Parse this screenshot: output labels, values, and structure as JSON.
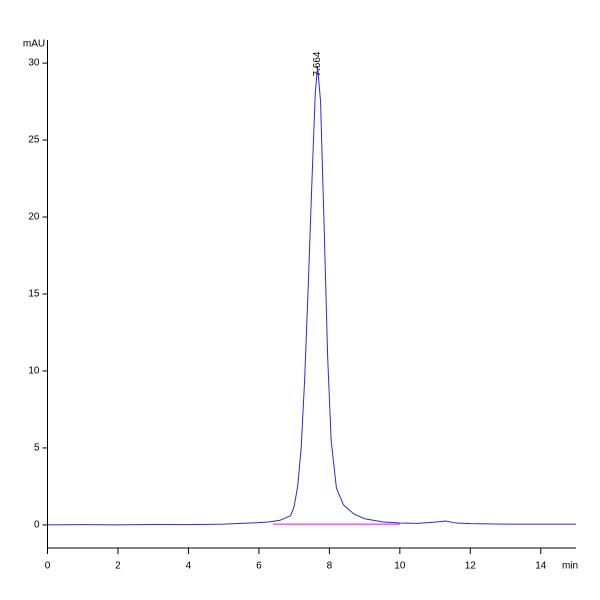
{
  "chart_data": {
    "type": "line",
    "y_label": "mAU",
    "x_label": "min",
    "xlim": [
      0,
      15
    ],
    "ylim": [
      -1.5,
      31.5
    ],
    "xticks": [
      0,
      2,
      4,
      6,
      8,
      10,
      12,
      14
    ],
    "yticks": [
      0,
      5,
      10,
      15,
      20,
      25,
      30
    ],
    "series": [
      {
        "color": "#2b2bd6",
        "x": [
          0,
          1,
          2,
          3,
          4,
          5,
          5.5,
          6,
          6.3,
          6.6,
          6.9,
          7.0,
          7.1,
          7.2,
          7.3,
          7.4,
          7.5,
          7.6,
          7.664,
          7.75,
          7.85,
          7.95,
          8.05,
          8.2,
          8.4,
          8.7,
          9.0,
          9.5,
          10,
          10.5,
          11.0,
          11.3,
          11.6,
          12,
          13,
          14,
          15
        ],
        "values": [
          0,
          0.02,
          0,
          0.03,
          0.02,
          0.05,
          0.1,
          0.15,
          0.2,
          0.3,
          0.6,
          1.2,
          2.5,
          5,
          9.5,
          15.5,
          22,
          28,
          29.8,
          27.5,
          19.5,
          11,
          5.5,
          2.4,
          1.3,
          0.7,
          0.4,
          0.2,
          0.12,
          0.1,
          0.18,
          0.25,
          0.12,
          0.08,
          0.05,
          0.05,
          0.05
        ]
      },
      {
        "color": "#ff00ff",
        "x": [
          6.4,
          10.0
        ],
        "values": [
          0.05,
          0.05
        ]
      }
    ],
    "annotations": [
      {
        "text": "7.664",
        "x": 7.664
      }
    ]
  }
}
